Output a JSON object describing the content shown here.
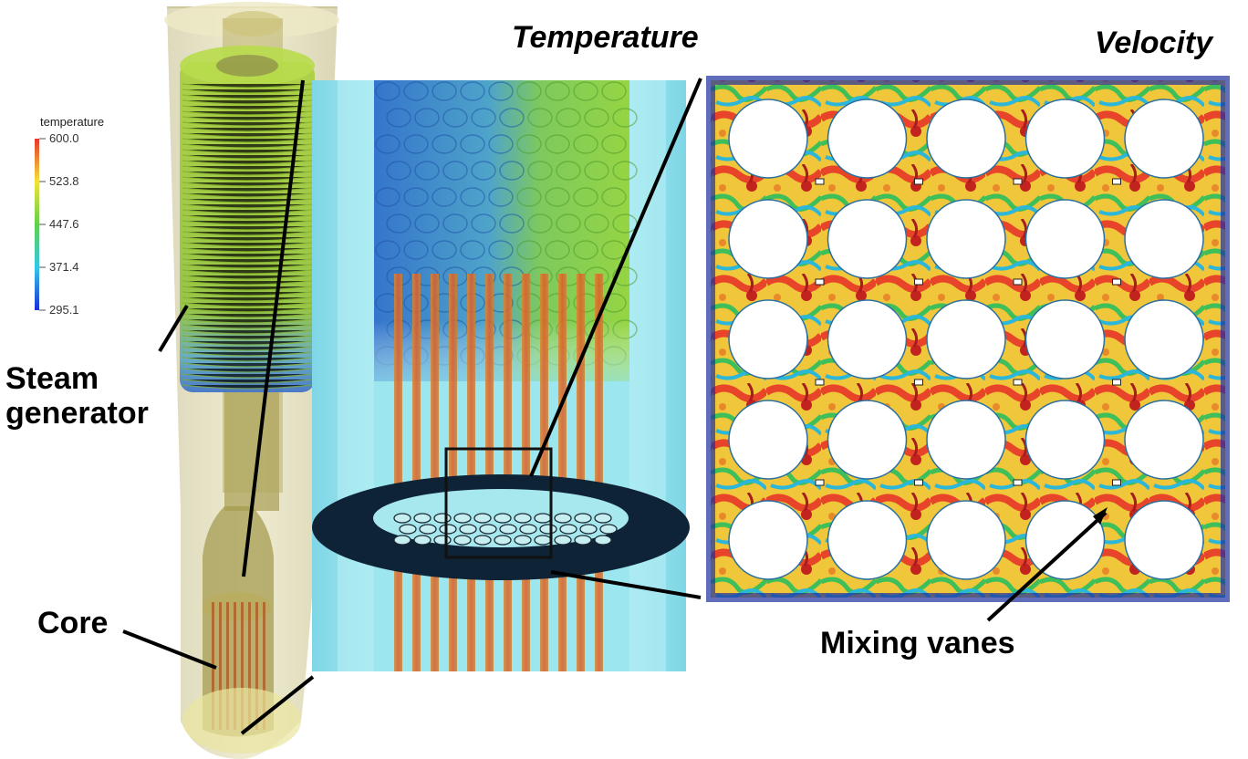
{
  "titles": {
    "temperature": "Temperature",
    "velocity": "Velocity"
  },
  "colorbar": {
    "title": "temperature",
    "ticks": [
      "600.0",
      "523.8",
      "447.6",
      "371.4",
      "295.1"
    ],
    "colors": [
      "#e8362b",
      "#f4e13a",
      "#5fd14a",
      "#33c8e8",
      "#1a2fd8"
    ]
  },
  "callouts": {
    "steam_generator": [
      "Steam",
      "generator"
    ],
    "core": "Core",
    "mixing_vanes": "Mixing vanes"
  }
}
